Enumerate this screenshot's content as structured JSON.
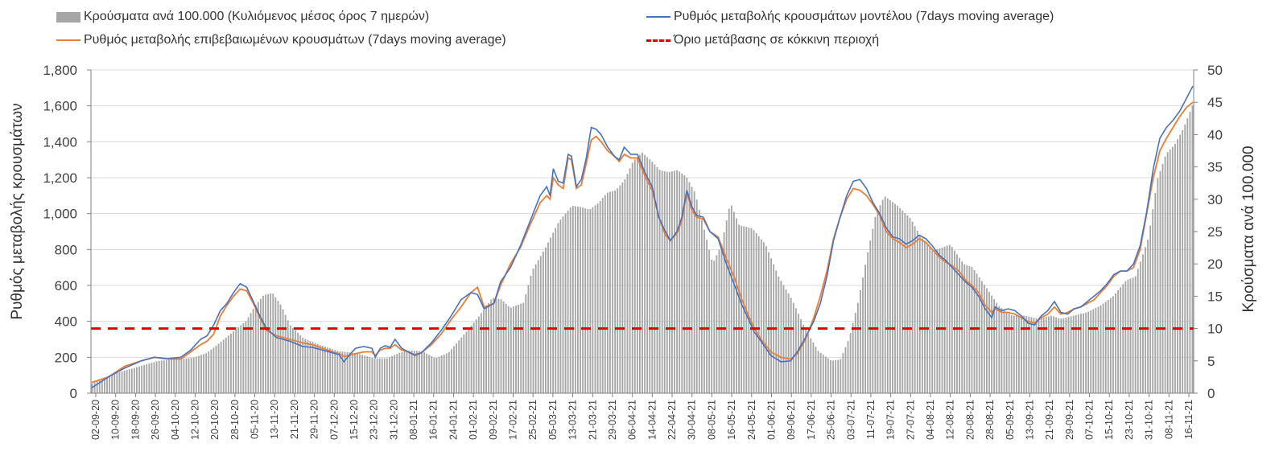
{
  "chart_data": {
    "type": "bar+line",
    "title": "",
    "legend": [
      {
        "key": "bars",
        "label": "Κρούσματα ανά 100.000 (Κυλιόμενος μέσος όρος 7 ημερών)",
        "color": "#a6a6a6"
      },
      {
        "key": "model",
        "label": "Ρυθμός μεταβολής κρουσμάτων μοντέλου (7days moving average)",
        "color": "#4472c4"
      },
      {
        "key": "confirmed",
        "label": "Ρυθμός μεταβολής επιβεβαιωμένων κρουσμάτων (7days moving average)",
        "color": "#ed7d31"
      },
      {
        "key": "threshold",
        "label": "Όριο μετάβασης σε κόκκινη περιοχή",
        "color": "#e00000"
      }
    ],
    "y_left": {
      "label": "Ρυθμός μεταβολής κρουσμάτων",
      "min": 0,
      "max": 1800,
      "ticks": [
        "0",
        "200",
        "400",
        "600",
        "800",
        "1,000",
        "1,200",
        "1,400",
        "1,600",
        "1,800"
      ]
    },
    "y_right": {
      "label": "Κρούσματα ανά 100.000",
      "min": 0,
      "max": 50,
      "ticks": [
        "0",
        "5",
        "10",
        "15",
        "20",
        "25",
        "30",
        "35",
        "40",
        "45",
        "50"
      ]
    },
    "x_start": "02-09-20",
    "n_days": 445,
    "x_tick_labels": [
      "02-09-20",
      "10-09-20",
      "18-09-20",
      "26-09-20",
      "04-10-20",
      "12-10-20",
      "20-10-20",
      "28-10-20",
      "05-11-20",
      "13-11-20",
      "21-11-20",
      "29-11-20",
      "07-12-20",
      "15-12-20",
      "23-12-20",
      "31-12-20",
      "08-01-21",
      "16-01-21",
      "24-01-21",
      "01-02-21",
      "09-02-21",
      "17-02-21",
      "25-02-21",
      "05-03-21",
      "13-03-21",
      "21-03-21",
      "29-03-21",
      "06-04-21",
      "14-04-21",
      "22-04-21",
      "30-04-21",
      "08-05-21",
      "16-05-21",
      "24-05-21",
      "01-06-21",
      "09-06-21",
      "17-06-21",
      "25-06-21",
      "03-07-21",
      "11-07-21",
      "19-07-21",
      "27-07-21",
      "04-08-21",
      "12-08-21",
      "20-08-21",
      "28-08-21",
      "05-09-21",
      "13-09-21",
      "21-09-21",
      "29-09-21",
      "07-10-21",
      "15-10-21",
      "23-10-21",
      "31-10-21",
      "08-11-21",
      "16-11-21"
    ],
    "threshold_value_left_axis": 360,
    "cases_per_100k_keypoints": [
      [
        0,
        1.5
      ],
      [
        5,
        2.3
      ],
      [
        10,
        3
      ],
      [
        16,
        3.6
      ],
      [
        22,
        4.2
      ],
      [
        30,
        5
      ],
      [
        38,
        5.2
      ],
      [
        46,
        5.5
      ],
      [
        52,
        6.2
      ],
      [
        58,
        7.8
      ],
      [
        64,
        9.5
      ],
      [
        70,
        11.2
      ],
      [
        74,
        13.5
      ],
      [
        78,
        15.2
      ],
      [
        82,
        15.5
      ],
      [
        86,
        13.5
      ],
      [
        90,
        10.5
      ],
      [
        96,
        8.5
      ],
      [
        104,
        7.4
      ],
      [
        112,
        6.5
      ],
      [
        120,
        6.2
      ],
      [
        128,
        5.4
      ],
      [
        134,
        5.4
      ],
      [
        140,
        6.3
      ],
      [
        145,
        6.6
      ],
      [
        150,
        6.5
      ],
      [
        156,
        5.4
      ],
      [
        162,
        6.3
      ],
      [
        170,
        9.5
      ],
      [
        176,
        12
      ],
      [
        182,
        14.8
      ],
      [
        186,
        14.5
      ],
      [
        190,
        13.2
      ],
      [
        196,
        14
      ],
      [
        200,
        19
      ],
      [
        206,
        22.5
      ],
      [
        212,
        26.5
      ],
      [
        218,
        29
      ],
      [
        222,
        28.8
      ],
      [
        226,
        28.4
      ],
      [
        230,
        29.4
      ],
      [
        234,
        31
      ],
      [
        238,
        31.4
      ],
      [
        242,
        33
      ],
      [
        246,
        36
      ],
      [
        250,
        37.2
      ],
      [
        254,
        36
      ],
      [
        258,
        34.5
      ],
      [
        262,
        34.2
      ],
      [
        266,
        34.5
      ],
      [
        270,
        33.5
      ],
      [
        274,
        31
      ],
      [
        278,
        25.5
      ],
      [
        282,
        20
      ],
      [
        286,
        23
      ],
      [
        290,
        29.5
      ],
      [
        294,
        26
      ],
      [
        300,
        25.5
      ],
      [
        306,
        23
      ],
      [
        312,
        18
      ],
      [
        318,
        14.5
      ],
      [
        324,
        10
      ],
      [
        330,
        6.5
      ],
      [
        336,
        5
      ],
      [
        340,
        5.2
      ],
      [
        344,
        8.5
      ],
      [
        348,
        14
      ],
      [
        352,
        21
      ],
      [
        356,
        27.5
      ],
      [
        360,
        30.5
      ],
      [
        366,
        29
      ],
      [
        372,
        27
      ],
      [
        376,
        24.5
      ],
      [
        382,
        22
      ],
      [
        386,
        22.5
      ],
      [
        390,
        23
      ],
      [
        396,
        20
      ],
      [
        400,
        19.5
      ],
      [
        406,
        16.5
      ],
      [
        412,
        13.5
      ],
      [
        418,
        12
      ],
      [
        424,
        12
      ],
      [
        430,
        11.5
      ],
      [
        436,
        12
      ],
      [
        440,
        11.5
      ],
      [
        446,
        12
      ],
      [
        452,
        12.5
      ],
      [
        458,
        13.5
      ],
      [
        464,
        15
      ],
      [
        470,
        17.5
      ],
      [
        474,
        18
      ],
      [
        480,
        24
      ],
      [
        484,
        33
      ],
      [
        488,
        37
      ],
      [
        492,
        38.5
      ],
      [
        496,
        41
      ],
      [
        500,
        44.5
      ]
    ],
    "model_rate_keypoints": [
      [
        0,
        30
      ],
      [
        10,
        90
      ],
      [
        20,
        140
      ],
      [
        30,
        180
      ],
      [
        38,
        200
      ],
      [
        46,
        192
      ],
      [
        54,
        200
      ],
      [
        60,
        240
      ],
      [
        66,
        300
      ],
      [
        70,
        320
      ],
      [
        74,
        380
      ],
      [
        78,
        460
      ],
      [
        82,
        500
      ],
      [
        86,
        560
      ],
      [
        90,
        610
      ],
      [
        94,
        590
      ],
      [
        98,
        510
      ],
      [
        102,
        430
      ],
      [
        106,
        360
      ],
      [
        112,
        310
      ],
      [
        120,
        290
      ],
      [
        128,
        260
      ],
      [
        134,
        255
      ],
      [
        140,
        240
      ],
      [
        146,
        225
      ],
      [
        150,
        215
      ],
      [
        153,
        175
      ],
      [
        156,
        210
      ],
      [
        160,
        250
      ],
      [
        165,
        260
      ],
      [
        170,
        250
      ],
      [
        172,
        200
      ],
      [
        175,
        250
      ],
      [
        178,
        265
      ],
      [
        181,
        255
      ],
      [
        184,
        300
      ],
      [
        188,
        250
      ],
      [
        192,
        230
      ],
      [
        196,
        210
      ],
      [
        200,
        225
      ],
      [
        206,
        280
      ],
      [
        212,
        350
      ],
      [
        218,
        430
      ],
      [
        224,
        520
      ],
      [
        230,
        560
      ],
      [
        234,
        550
      ],
      [
        238,
        470
      ],
      [
        244,
        500
      ],
      [
        248,
        620
      ],
      [
        254,
        700
      ],
      [
        260,
        820
      ],
      [
        266,
        960
      ],
      [
        272,
        1100
      ],
      [
        276,
        1150
      ],
      [
        278,
        1100
      ],
      [
        280,
        1250
      ],
      [
        283,
        1180
      ],
      [
        286,
        1170
      ],
      [
        289,
        1330
      ],
      [
        291,
        1320
      ],
      [
        294,
        1150
      ],
      [
        297,
        1190
      ],
      [
        300,
        1310
      ],
      [
        303,
        1480
      ],
      [
        306,
        1470
      ],
      [
        309,
        1440
      ],
      [
        313,
        1370
      ],
      [
        317,
        1320
      ],
      [
        320,
        1300
      ],
      [
        323,
        1370
      ],
      [
        327,
        1330
      ],
      [
        331,
        1330
      ],
      [
        336,
        1220
      ],
      [
        340,
        1150
      ],
      [
        344,
        980
      ],
      [
        348,
        900
      ],
      [
        351,
        850
      ],
      [
        355,
        900
      ],
      [
        358,
        980
      ],
      [
        361,
        1130
      ],
      [
        364,
        1040
      ],
      [
        367,
        990
      ],
      [
        371,
        980
      ],
      [
        375,
        900
      ],
      [
        380,
        860
      ],
      [
        385,
        720
      ],
      [
        390,
        600
      ],
      [
        394,
        500
      ],
      [
        398,
        420
      ],
      [
        402,
        340
      ],
      [
        406,
        290
      ],
      [
        412,
        210
      ],
      [
        418,
        175
      ],
      [
        424,
        180
      ],
      [
        428,
        230
      ],
      [
        433,
        310
      ],
      [
        438,
        400
      ],
      [
        442,
        500
      ],
      [
        446,
        650
      ],
      [
        450,
        850
      ],
      [
        454,
        980
      ],
      [
        458,
        1100
      ],
      [
        462,
        1180
      ],
      [
        466,
        1190
      ],
      [
        470,
        1140
      ],
      [
        474,
        1060
      ],
      [
        478,
        1000
      ],
      [
        482,
        920
      ],
      [
        486,
        870
      ],
      [
        490,
        860
      ],
      [
        494,
        830
      ],
      [
        498,
        850
      ],
      [
        502,
        880
      ],
      [
        506,
        860
      ],
      [
        510,
        820
      ],
      [
        514,
        770
      ],
      [
        518,
        740
      ],
      [
        522,
        700
      ],
      [
        526,
        660
      ],
      [
        530,
        620
      ],
      [
        534,
        590
      ],
      [
        538,
        540
      ],
      [
        542,
        470
      ],
      [
        546,
        420
      ],
      [
        548,
        480
      ],
      [
        552,
        460
      ],
      [
        556,
        470
      ],
      [
        560,
        460
      ],
      [
        564,
        430
      ],
      [
        568,
        390
      ],
      [
        572,
        380
      ],
      [
        576,
        430
      ],
      [
        580,
        460
      ],
      [
        584,
        510
      ],
      [
        588,
        450
      ],
      [
        592,
        440
      ],
      [
        596,
        470
      ],
      [
        600,
        480
      ],
      [
        604,
        510
      ],
      [
        608,
        540
      ],
      [
        612,
        570
      ],
      [
        616,
        610
      ],
      [
        620,
        660
      ],
      [
        624,
        680
      ],
      [
        628,
        680
      ],
      [
        632,
        720
      ],
      [
        636,
        820
      ],
      [
        640,
        1010
      ],
      [
        644,
        1250
      ],
      [
        648,
        1420
      ],
      [
        652,
        1480
      ],
      [
        656,
        1520
      ],
      [
        660,
        1570
      ],
      [
        664,
        1640
      ],
      [
        668,
        1710
      ]
    ],
    "confirmed_rate_keypoints": [
      [
        0,
        60
      ],
      [
        10,
        90
      ],
      [
        20,
        150
      ],
      [
        30,
        180
      ],
      [
        38,
        200
      ],
      [
        46,
        190
      ],
      [
        54,
        190
      ],
      [
        60,
        230
      ],
      [
        66,
        270
      ],
      [
        70,
        290
      ],
      [
        74,
        330
      ],
      [
        78,
        430
      ],
      [
        82,
        490
      ],
      [
        86,
        540
      ],
      [
        90,
        580
      ],
      [
        94,
        570
      ],
      [
        98,
        500
      ],
      [
        102,
        420
      ],
      [
        106,
        350
      ],
      [
        112,
        320
      ],
      [
        120,
        300
      ],
      [
        128,
        280
      ],
      [
        134,
        270
      ],
      [
        140,
        250
      ],
      [
        146,
        230
      ],
      [
        150,
        220
      ],
      [
        153,
        205
      ],
      [
        156,
        210
      ],
      [
        160,
        220
      ],
      [
        165,
        230
      ],
      [
        170,
        230
      ],
      [
        172,
        210
      ],
      [
        175,
        240
      ],
      [
        178,
        250
      ],
      [
        181,
        250
      ],
      [
        184,
        270
      ],
      [
        188,
        240
      ],
      [
        192,
        230
      ],
      [
        196,
        215
      ],
      [
        200,
        225
      ],
      [
        206,
        270
      ],
      [
        212,
        330
      ],
      [
        218,
        410
      ],
      [
        224,
        480
      ],
      [
        230,
        560
      ],
      [
        234,
        590
      ],
      [
        238,
        480
      ],
      [
        244,
        500
      ],
      [
        248,
        600
      ],
      [
        254,
        720
      ],
      [
        260,
        810
      ],
      [
        266,
        940
      ],
      [
        272,
        1060
      ],
      [
        276,
        1100
      ],
      [
        278,
        1080
      ],
      [
        280,
        1200
      ],
      [
        283,
        1160
      ],
      [
        286,
        1140
      ],
      [
        289,
        1310
      ],
      [
        291,
        1300
      ],
      [
        294,
        1140
      ],
      [
        297,
        1160
      ],
      [
        300,
        1280
      ],
      [
        303,
        1410
      ],
      [
        306,
        1430
      ],
      [
        309,
        1400
      ],
      [
        313,
        1350
      ],
      [
        317,
        1320
      ],
      [
        320,
        1290
      ],
      [
        323,
        1330
      ],
      [
        327,
        1310
      ],
      [
        331,
        1310
      ],
      [
        336,
        1200
      ],
      [
        340,
        1130
      ],
      [
        344,
        980
      ],
      [
        348,
        880
      ],
      [
        351,
        850
      ],
      [
        355,
        890
      ],
      [
        358,
        960
      ],
      [
        361,
        1120
      ],
      [
        364,
        1020
      ],
      [
        367,
        980
      ],
      [
        371,
        970
      ],
      [
        375,
        900
      ],
      [
        380,
        870
      ],
      [
        385,
        750
      ],
      [
        390,
        640
      ],
      [
        394,
        530
      ],
      [
        398,
        440
      ],
      [
        402,
        360
      ],
      [
        406,
        300
      ],
      [
        412,
        230
      ],
      [
        418,
        200
      ],
      [
        424,
        190
      ],
      [
        428,
        220
      ],
      [
        433,
        300
      ],
      [
        438,
        420
      ],
      [
        442,
        540
      ],
      [
        446,
        680
      ],
      [
        450,
        860
      ],
      [
        454,
        980
      ],
      [
        458,
        1080
      ],
      [
        462,
        1140
      ],
      [
        466,
        1130
      ],
      [
        470,
        1100
      ],
      [
        474,
        1050
      ],
      [
        478,
        990
      ],
      [
        482,
        900
      ],
      [
        486,
        860
      ],
      [
        490,
        840
      ],
      [
        494,
        810
      ],
      [
        498,
        830
      ],
      [
        502,
        860
      ],
      [
        506,
        840
      ],
      [
        510,
        800
      ],
      [
        514,
        760
      ],
      [
        518,
        730
      ],
      [
        522,
        710
      ],
      [
        526,
        680
      ],
      [
        530,
        630
      ],
      [
        534,
        600
      ],
      [
        538,
        560
      ],
      [
        542,
        490
      ],
      [
        546,
        450
      ],
      [
        548,
        470
      ],
      [
        552,
        450
      ],
      [
        556,
        450
      ],
      [
        560,
        440
      ],
      [
        564,
        420
      ],
      [
        568,
        400
      ],
      [
        572,
        390
      ],
      [
        576,
        420
      ],
      [
        580,
        440
      ],
      [
        584,
        480
      ],
      [
        588,
        440
      ],
      [
        592,
        450
      ],
      [
        596,
        470
      ],
      [
        600,
        480
      ],
      [
        604,
        500
      ],
      [
        608,
        520
      ],
      [
        612,
        560
      ],
      [
        616,
        600
      ],
      [
        620,
        650
      ],
      [
        624,
        680
      ],
      [
        628,
        680
      ],
      [
        632,
        700
      ],
      [
        636,
        800
      ],
      [
        640,
        1000
      ],
      [
        644,
        1200
      ],
      [
        648,
        1350
      ],
      [
        652,
        1420
      ],
      [
        656,
        1480
      ],
      [
        660,
        1540
      ],
      [
        664,
        1590
      ],
      [
        668,
        1620
      ]
    ]
  }
}
